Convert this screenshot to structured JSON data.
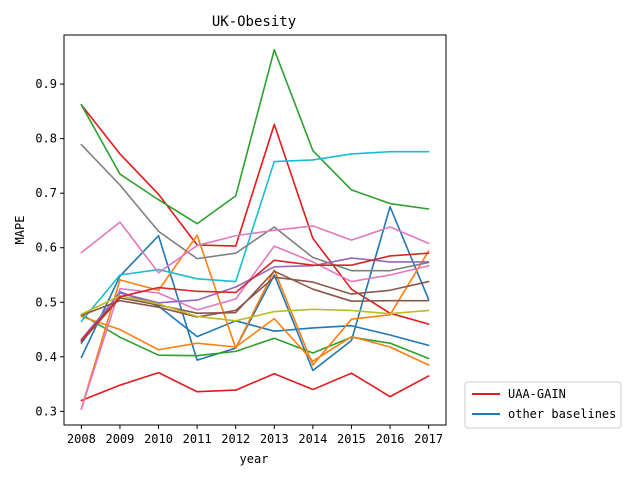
{
  "chart_data": {
    "type": "line",
    "title": "UK-Obesity",
    "xlabel": "year",
    "ylabel": "MAPE",
    "x": [
      2008,
      2009,
      2010,
      2011,
      2012,
      2013,
      2014,
      2015,
      2016,
      2017
    ],
    "xlim": [
      2007.55,
      2017.45
    ],
    "ylim": [
      0.275,
      0.99
    ],
    "yticks": [
      0.3,
      0.4,
      0.5,
      0.6,
      0.7,
      0.8,
      0.9
    ],
    "grid": false,
    "legend": {
      "position": "outside-lower-right",
      "entries": [
        {
          "label": "UAA-GAIN",
          "color": "#e31a1c"
        },
        {
          "label": "other baselines",
          "color": "#1f77b4"
        }
      ]
    },
    "series": [
      {
        "name": "UAA-GAIN",
        "color": "#e31a1c",
        "values": [
          0.32,
          0.348,
          0.371,
          0.336,
          0.339,
          0.369,
          0.34,
          0.37,
          0.327,
          0.365
        ]
      },
      {
        "color": "#e31a1c",
        "values": [
          0.862,
          0.772,
          0.698,
          0.605,
          0.603,
          0.826,
          0.617,
          0.524,
          0.48,
          0.46
        ]
      },
      {
        "name": "other baselines",
        "color": "#1f77b4",
        "values": [
          0.399,
          0.548,
          0.622,
          0.394,
          0.416,
          0.55,
          0.375,
          0.43,
          0.675,
          0.505
        ]
      },
      {
        "color": "#1f77b4",
        "values": [
          0.425,
          0.519,
          0.493,
          0.437,
          0.466,
          0.447,
          0.453,
          0.457,
          0.44,
          0.421
        ]
      },
      {
        "color": "#2ca02c",
        "values": [
          0.862,
          0.735,
          0.688,
          0.644,
          0.695,
          0.963,
          0.778,
          0.706,
          0.681,
          0.671
        ]
      },
      {
        "color": "#2ca02c",
        "values": [
          0.478,
          0.436,
          0.403,
          0.402,
          0.41,
          0.434,
          0.407,
          0.436,
          0.425,
          0.397
        ]
      },
      {
        "color": "#ff7f0e",
        "values": [
          0.305,
          0.541,
          0.522,
          0.623,
          0.416,
          0.559,
          0.385,
          0.469,
          0.477,
          0.594
        ]
      },
      {
        "color": "#ff7f0e",
        "values": [
          0.474,
          0.45,
          0.413,
          0.425,
          0.418,
          0.47,
          0.392,
          0.437,
          0.418,
          0.385
        ]
      },
      {
        "color": "#17becf",
        "values": [
          0.465,
          0.55,
          0.56,
          0.543,
          0.538,
          0.758,
          0.761,
          0.772,
          0.776,
          0.776
        ]
      },
      {
        "color": "#7f7f7f",
        "values": [
          0.789,
          0.715,
          0.63,
          0.58,
          0.59,
          0.638,
          0.582,
          0.558,
          0.558,
          0.573
        ]
      },
      {
        "color": "#e377c2",
        "values": [
          0.591,
          0.647,
          0.554,
          0.604,
          0.622,
          0.632,
          0.64,
          0.614,
          0.638,
          0.608
        ]
      },
      {
        "color": "#e377c2",
        "values": [
          0.304,
          0.525,
          0.517,
          0.486,
          0.506,
          0.603,
          0.574,
          0.538,
          0.55,
          0.567
        ]
      },
      {
        "color": "#9467bd",
        "values": [
          0.432,
          0.517,
          0.499,
          0.504,
          0.528,
          0.565,
          0.567,
          0.581,
          0.574,
          0.574
        ]
      },
      {
        "color": "#8c564b",
        "values": [
          0.428,
          0.508,
          0.495,
          0.48,
          0.481,
          0.557,
          0.524,
          0.502,
          0.503,
          0.503
        ]
      },
      {
        "color": "#8c564b",
        "values": [
          0.476,
          0.503,
          0.491,
          0.473,
          0.485,
          0.546,
          0.537,
          0.515,
          0.522,
          0.538
        ]
      },
      {
        "color": "#bcbd22",
        "values": [
          0.478,
          0.512,
          0.497,
          0.474,
          0.466,
          0.483,
          0.487,
          0.485,
          0.479,
          0.485
        ]
      },
      {
        "color": "#d62728",
        "values": [
          0.43,
          0.51,
          0.527,
          0.52,
          0.518,
          0.577,
          0.568,
          0.568,
          0.585,
          0.59
        ]
      }
    ]
  }
}
